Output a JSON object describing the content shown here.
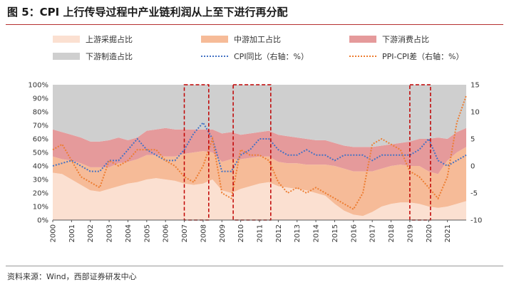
{
  "figure": {
    "title": "图 5：CPI 上行传导过程中产业链利润从上至下进行再分配",
    "source": "资料来源：Wind，西部证券研发中心"
  },
  "colors": {
    "upstream": "#fbe0d1",
    "midstream": "#f6bb98",
    "downstream_consumer": "#e59a9b",
    "downstream_mfg": "#cfcfcf",
    "cpi": "#4472c4",
    "ppi_cpi": "#ed7d31",
    "highlight": "#c00000",
    "rule": "#b5302f"
  },
  "chart_data": {
    "type": "area",
    "title": "",
    "xlabel": "",
    "ylabel": "",
    "stacked": true,
    "x_start": 2000,
    "x_end": 2022,
    "x_ticks": [
      "2000",
      "2001",
      "2002",
      "2003",
      "2004",
      "2005",
      "2006",
      "2007",
      "2008",
      "2009",
      "2010",
      "2011",
      "2012",
      "2013",
      "2014",
      "2015",
      "2016",
      "2017",
      "2018",
      "2019",
      "2020",
      "2021"
    ],
    "ylim_left": [
      0,
      100
    ],
    "ylim_right": [
      -10,
      15
    ],
    "y_ticks_left": [
      "0%",
      "10%",
      "20%",
      "30%",
      "40%",
      "50%",
      "60%",
      "70%",
      "80%",
      "90%",
      "100%"
    ],
    "y_ticks_right": [
      "-10",
      "-5",
      "0",
      "5",
      "10",
      "15"
    ],
    "legend": [
      "上游采掘占比",
      "中游加工占比",
      "下游消费占比",
      "下游制造占比",
      "CPI同比（右轴：%）",
      "PPI-CPI差（右轴：%）"
    ],
    "highlight_periods": [
      [
        2007.0,
        2008.3
      ],
      [
        2009.6,
        2011.6
      ],
      [
        2019.0,
        2020.1
      ]
    ],
    "series": [
      {
        "name": "上游采掘占比",
        "x": [
          2000,
          2000.5,
          2001,
          2001.5,
          2002,
          2002.5,
          2003,
          2003.5,
          2004,
          2004.5,
          2005,
          2005.5,
          2006,
          2006.5,
          2007,
          2007.5,
          2008,
          2008.5,
          2009,
          2009.5,
          2010,
          2010.5,
          2011,
          2011.5,
          2012,
          2012.5,
          2013,
          2013.5,
          2014,
          2014.5,
          2015,
          2015.5,
          2016,
          2016.5,
          2017,
          2017.5,
          2018,
          2018.5,
          2019,
          2019.5,
          2020,
          2020.5,
          2021,
          2021.5,
          2022
        ],
        "values": [
          35,
          34,
          30,
          26,
          22,
          21,
          23,
          25,
          27,
          28,
          30,
          31,
          30,
          29,
          27,
          26,
          27,
          30,
          22,
          20,
          23,
          25,
          27,
          28,
          25,
          24,
          23,
          22,
          20,
          18,
          12,
          7,
          4,
          3,
          6,
          10,
          12,
          13,
          13,
          12,
          10,
          9,
          10,
          12,
          14
        ]
      },
      {
        "name": "中游加工占比",
        "x": [
          2000,
          2000.5,
          2001,
          2001.5,
          2002,
          2002.5,
          2003,
          2003.5,
          2004,
          2004.5,
          2005,
          2005.5,
          2006,
          2006.5,
          2007,
          2007.5,
          2008,
          2008.5,
          2009,
          2009.5,
          2010,
          2010.5,
          2011,
          2011.5,
          2012,
          2012.5,
          2013,
          2013.5,
          2014,
          2014.5,
          2015,
          2015.5,
          2016,
          2016.5,
          2017,
          2017.5,
          2018,
          2018.5,
          2019,
          2019.5,
          2020,
          2020.5,
          2021,
          2021.5,
          2022
        ],
        "values": [
          12,
          11,
          14,
          16,
          17,
          18,
          16,
          17,
          16,
          17,
          18,
          17,
          17,
          18,
          22,
          24,
          24,
          20,
          21,
          25,
          22,
          21,
          20,
          19,
          18,
          18,
          19,
          19,
          21,
          23,
          28,
          31,
          32,
          33,
          30,
          28,
          28,
          28,
          27,
          28,
          26,
          25,
          34,
          38,
          40
        ]
      },
      {
        "name": "下游消费占比",
        "x": [
          2000,
          2000.5,
          2001,
          2001.5,
          2002,
          2002.5,
          2003,
          2003.5,
          2004,
          2004.5,
          2005,
          2005.5,
          2006,
          2006.5,
          2007,
          2007.5,
          2008,
          2008.5,
          2009,
          2009.5,
          2010,
          2010.5,
          2011,
          2011.5,
          2012,
          2012.5,
          2013,
          2013.5,
          2014,
          2014.5,
          2015,
          2015.5,
          2016,
          2016.5,
          2017,
          2017.5,
          2018,
          2018.5,
          2019,
          2019.5,
          2020,
          2020.5,
          2021,
          2021.5,
          2022
        ],
        "values": [
          20,
          20,
          19,
          19,
          19,
          19,
          20,
          19,
          16,
          16,
          18,
          19,
          21,
          20,
          18,
          17,
          16,
          17,
          21,
          20,
          18,
          18,
          18,
          19,
          20,
          20,
          19,
          19,
          18,
          18,
          17,
          17,
          18,
          18,
          18,
          17,
          16,
          16,
          18,
          20,
          24,
          27,
          16,
          15,
          14
        ]
      },
      {
        "name": "下游制造占比",
        "x": [
          2000,
          2000.5,
          2001,
          2001.5,
          2002,
          2002.5,
          2003,
          2003.5,
          2004,
          2004.5,
          2005,
          2005.5,
          2006,
          2006.5,
          2007,
          2007.5,
          2008,
          2008.5,
          2009,
          2009.5,
          2010,
          2010.5,
          2011,
          2011.5,
          2012,
          2012.5,
          2013,
          2013.5,
          2014,
          2014.5,
          2015,
          2015.5,
          2016,
          2016.5,
          2017,
          2017.5,
          2018,
          2018.5,
          2019,
          2019.5,
          2020,
          2020.5,
          2021,
          2021.5,
          2022
        ],
        "values": [
          33,
          35,
          37,
          39,
          42,
          42,
          41,
          39,
          41,
          39,
          34,
          33,
          32,
          33,
          33,
          33,
          33,
          33,
          36,
          35,
          37,
          36,
          35,
          34,
          37,
          38,
          39,
          40,
          41,
          41,
          43,
          45,
          46,
          46,
          46,
          45,
          44,
          43,
          42,
          40,
          40,
          39,
          40,
          35,
          32
        ]
      },
      {
        "name": "CPI同比（右轴：%）",
        "axis": "right",
        "x": [
          2000,
          2000.5,
          2001,
          2001.5,
          2002,
          2002.5,
          2003,
          2003.5,
          2004,
          2004.5,
          2005,
          2005.5,
          2006,
          2006.5,
          2007,
          2007.5,
          2008,
          2008.5,
          2009,
          2009.5,
          2010,
          2010.5,
          2011,
          2011.5,
          2012,
          2012.5,
          2013,
          2013.5,
          2014,
          2014.5,
          2015,
          2015.5,
          2016,
          2016.5,
          2017,
          2017.5,
          2018,
          2018.5,
          2019,
          2019.5,
          2020,
          2020.5,
          2021,
          2021.5,
          2022
        ],
        "values": [
          0,
          0.5,
          1,
          0,
          -1,
          -1,
          1,
          1,
          3,
          5,
          3,
          2,
          1,
          1,
          3,
          6,
          8,
          5,
          -1,
          -1,
          2,
          3,
          5,
          5,
          3,
          2,
          2,
          3,
          2,
          2,
          1,
          2,
          2,
          2,
          1,
          2,
          2,
          2,
          2,
          3,
          5,
          1,
          0,
          1,
          2
        ]
      },
      {
        "name": "PPI-CPI差（右轴：%）",
        "axis": "right",
        "x": [
          2000,
          2000.5,
          2001,
          2001.5,
          2002,
          2002.5,
          2003,
          2003.5,
          2004,
          2004.5,
          2005,
          2005.5,
          2006,
          2006.5,
          2007,
          2007.5,
          2008,
          2008.5,
          2009,
          2009.5,
          2010,
          2010.5,
          2011,
          2011.5,
          2012,
          2012.5,
          2013,
          2013.5,
          2014,
          2014.5,
          2015,
          2015.5,
          2016,
          2016.5,
          2017,
          2017.5,
          2018,
          2018.5,
          2019,
          2019.5,
          2020,
          2020.5,
          2021,
          2021.5,
          2022
        ],
        "values": [
          3,
          4,
          1,
          -2,
          -3,
          -4,
          1,
          0,
          1,
          3,
          3,
          3,
          1,
          0,
          -2,
          -3,
          0,
          5,
          -5,
          -6,
          3,
          2,
          2,
          1,
          -3,
          -5,
          -4,
          -5,
          -4,
          -5,
          -6,
          -7,
          -8,
          -5,
          4,
          5,
          4,
          3,
          -1,
          -2,
          -4,
          -6,
          -2,
          8,
          13
        ]
      }
    ]
  }
}
